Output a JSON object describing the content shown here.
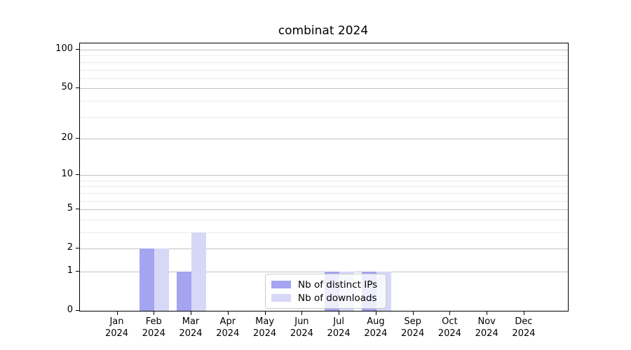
{
  "title": "combinat 2024",
  "chart_data": {
    "type": "bar",
    "title": "combinat 2024",
    "categories": [
      "Jan",
      "Feb",
      "Mar",
      "Apr",
      "May",
      "Jun",
      "Jul",
      "Aug",
      "Sep",
      "Oct",
      "Nov",
      "Dec"
    ],
    "category_year": "2024",
    "series": [
      {
        "name": "Nb of distinct IPs",
        "color": "#a4a4f0",
        "values": [
          0,
          2,
          1,
          0,
          0,
          0,
          1,
          1,
          0,
          0,
          0,
          0
        ]
      },
      {
        "name": "Nb of downloads",
        "color": "#d7d7f7",
        "values": [
          0,
          2,
          3,
          0,
          0,
          0,
          1,
          1,
          0,
          0,
          0,
          0
        ]
      }
    ],
    "xlabel": "",
    "ylabel": "",
    "y_axis": {
      "scale": "log1p",
      "tick_labels": [
        0,
        1,
        2,
        5,
        10,
        20,
        50,
        100
      ],
      "major_gridline_values": [
        1,
        2,
        5,
        10,
        20,
        50,
        100
      ],
      "minor_gridline_values": [
        3,
        4,
        6,
        7,
        8,
        9,
        30,
        40,
        60,
        70,
        80,
        90
      ],
      "ylim": [
        0,
        112
      ]
    },
    "grid": true,
    "legend_position": "inside-bottom-center",
    "colors": {
      "major_grid": "#c3c3c3",
      "minor_grid": "#ebebeb",
      "spine": "#000000",
      "background": "#ffffff"
    }
  }
}
